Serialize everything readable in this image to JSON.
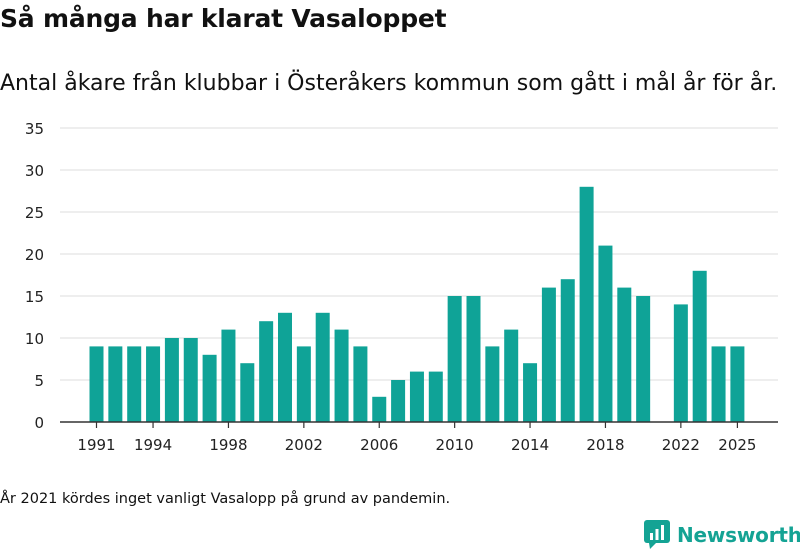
{
  "header": {
    "title": "Så många har klarat Vasaloppet",
    "subtitle": "Antal åkare från klubbar i Österåkers kommun som gått i mål år för år."
  },
  "footer": {
    "note": "År 2021 kördes inget vanligt Vasalopp på grund av pandemin.",
    "brand": "Newsworthy"
  },
  "colors": {
    "bar": "#0fa397",
    "grid": "#e3e3e3",
    "axis": "#333333",
    "brand": "#14a394"
  },
  "chart_data": {
    "type": "bar",
    "title": "Så många har klarat Vasaloppet",
    "xlabel": "",
    "ylabel": "",
    "ylim": [
      0,
      35
    ],
    "yticks": [
      0,
      5,
      10,
      15,
      20,
      25,
      30,
      35
    ],
    "xticks": [
      1991,
      1994,
      1998,
      2002,
      2006,
      2010,
      2014,
      2018,
      2022,
      2025
    ],
    "categories": [
      1991,
      1992,
      1993,
      1994,
      1995,
      1996,
      1997,
      1998,
      1999,
      2000,
      2001,
      2002,
      2003,
      2004,
      2005,
      2006,
      2007,
      2008,
      2009,
      2010,
      2011,
      2012,
      2013,
      2014,
      2015,
      2016,
      2017,
      2018,
      2019,
      2020,
      2021,
      2022,
      2023,
      2024,
      2025
    ],
    "values": [
      9,
      9,
      9,
      9,
      10,
      10,
      8,
      11,
      7,
      12,
      13,
      9,
      13,
      11,
      9,
      3,
      5,
      6,
      6,
      15,
      15,
      9,
      11,
      7,
      16,
      17,
      28,
      21,
      16,
      15,
      null,
      14,
      18,
      9,
      9
    ],
    "grid": true,
    "legend": "none"
  }
}
